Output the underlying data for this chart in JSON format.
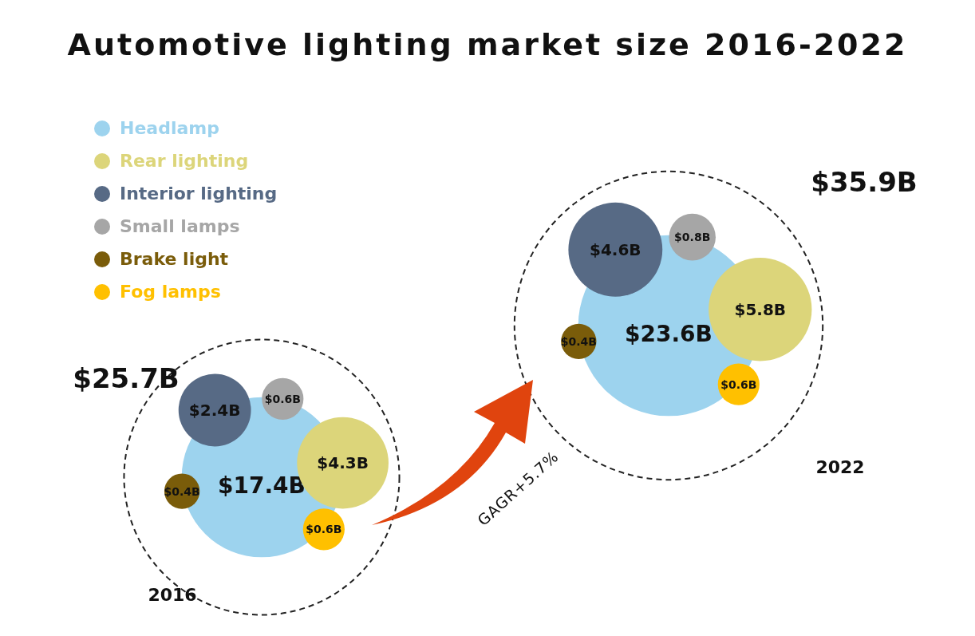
{
  "chart_data": {
    "type": "other",
    "title": "Automotive lighting market size 2016-2022",
    "categories": [
      "2016",
      "2022"
    ],
    "series": [
      {
        "name": "Headlamp",
        "color": "#9dd3ee",
        "values": [
          17.4,
          23.6
        ],
        "value_labels": [
          "$17.4B",
          "$23.6B"
        ]
      },
      {
        "name": "Rear lighting",
        "color": "#dcd57a",
        "values": [
          4.3,
          5.8
        ],
        "value_labels": [
          "$4.3B",
          "$5.8B"
        ]
      },
      {
        "name": "Interior lighting",
        "color": "#576a85",
        "values": [
          2.4,
          4.6
        ],
        "value_labels": [
          "$2.4B",
          "$4.6B"
        ]
      },
      {
        "name": "Small lamps",
        "color": "#a6a6a6",
        "values": [
          0.6,
          0.8
        ],
        "value_labels": [
          "$0.6B",
          "$0.8B"
        ]
      },
      {
        "name": "Brake light",
        "color": "#7a5c0a",
        "values": [
          0.4,
          0.4
        ],
        "value_labels": [
          "$0.4B",
          "$0.4B"
        ]
      },
      {
        "name": "Fog lamps",
        "color": "#ffc000",
        "values": [
          0.6,
          0.6
        ],
        "value_labels": [
          "$0.6B",
          "$0.6B"
        ]
      }
    ],
    "totals": [
      "$25.7B",
      "$35.9B"
    ],
    "legend": "top left",
    "annotations": [
      "GAGR+5.7%"
    ]
  }
}
